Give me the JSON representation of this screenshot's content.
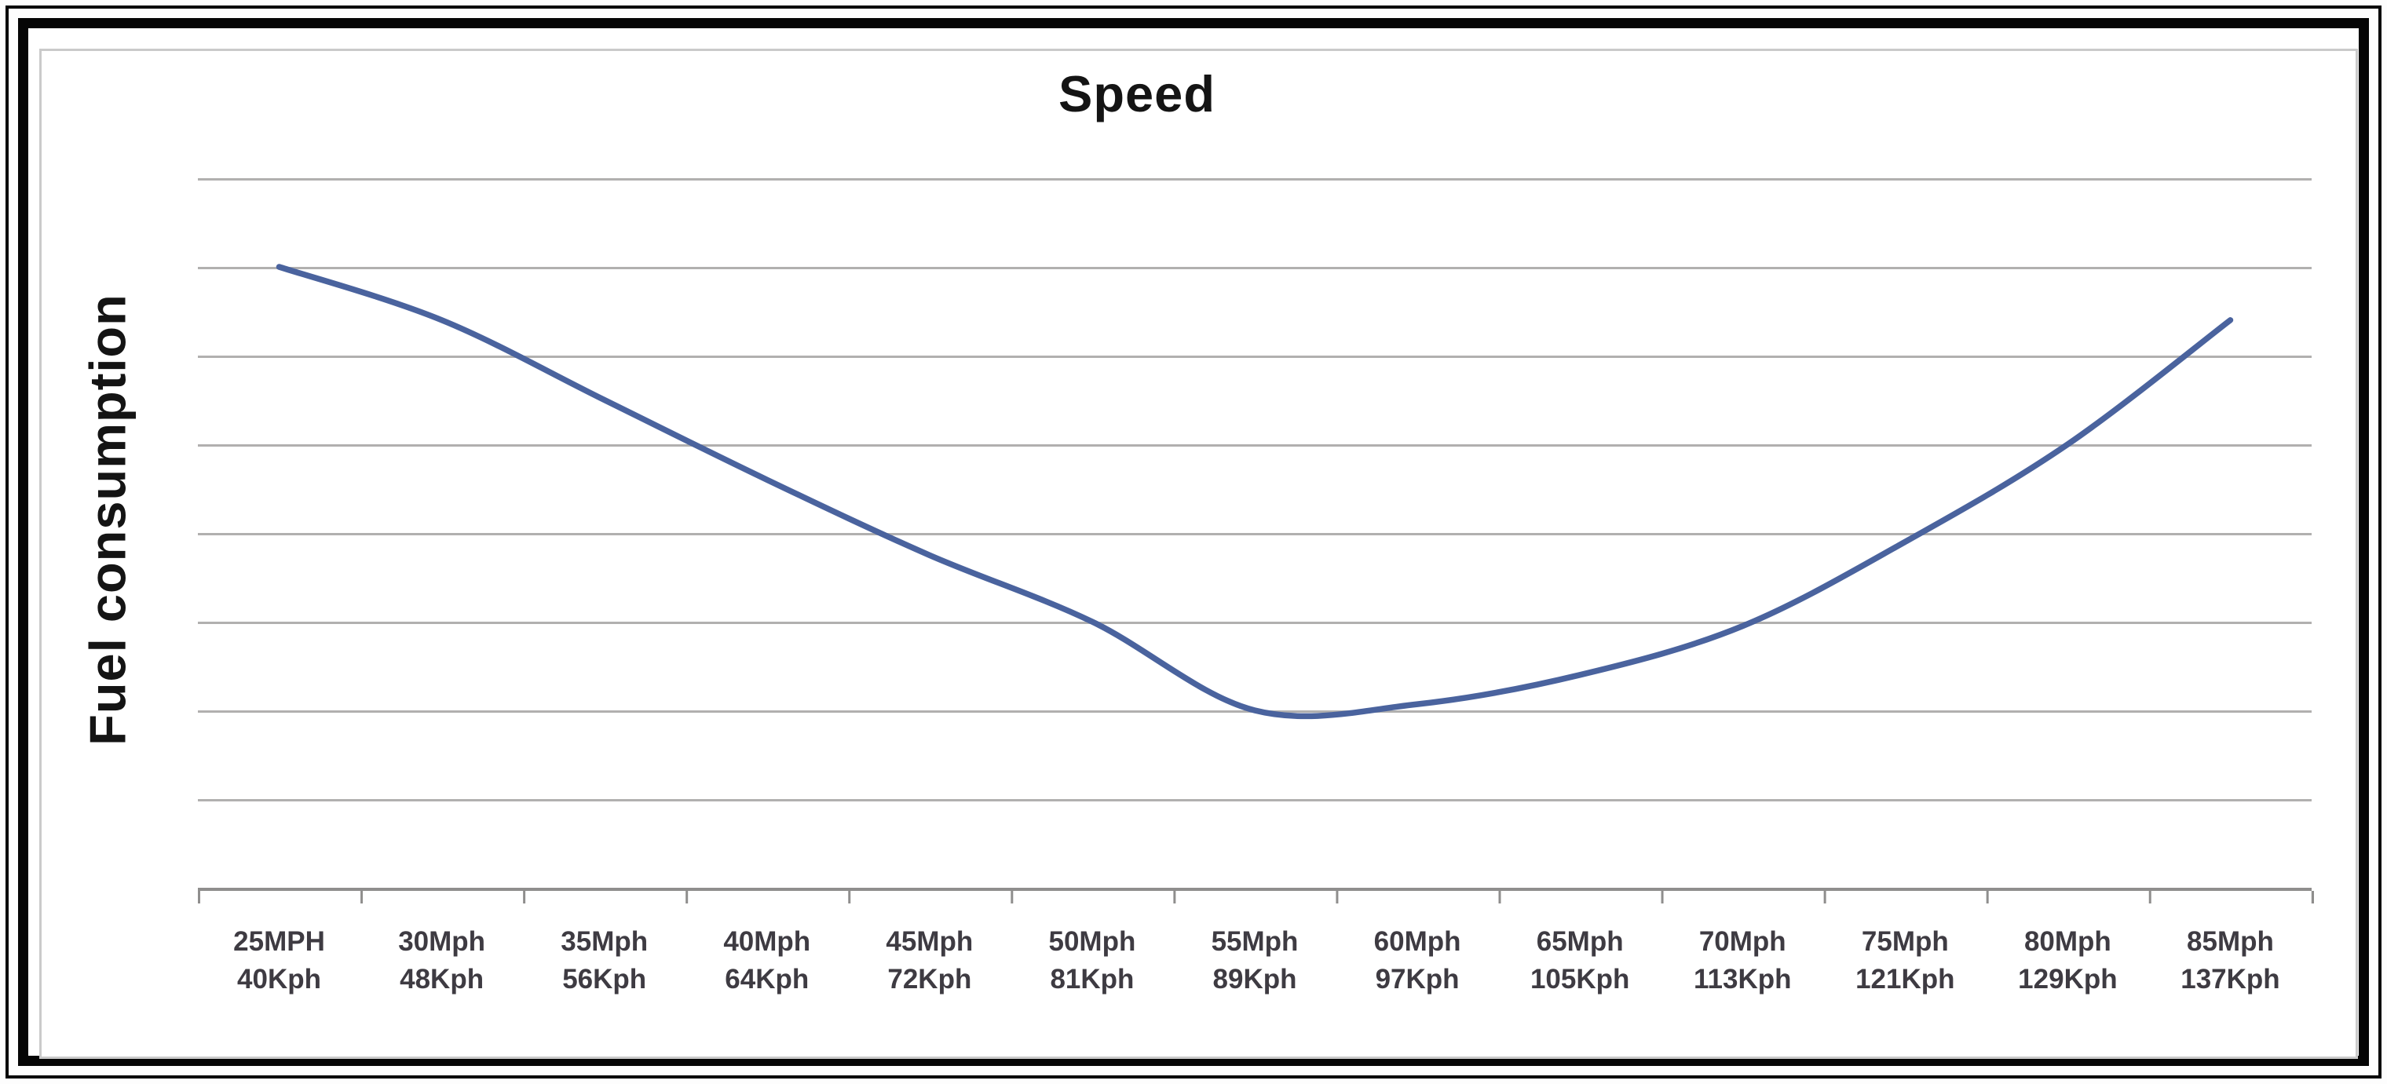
{
  "chart": {
    "title": "Speed",
    "y_axis_label": "Fuel consumption",
    "x_labels": [
      {
        "mph": "25MPH",
        "kph": "40Kph"
      },
      {
        "mph": "30Mph",
        "kph": "48Kph"
      },
      {
        "mph": "35Mph",
        "kph": "56Kph"
      },
      {
        "mph": "40Mph",
        "kph": "64Kph"
      },
      {
        "mph": "45Mph",
        "kph": "72Kph"
      },
      {
        "mph": "50Mph",
        "kph": "81Kph"
      },
      {
        "mph": "55Mph",
        "kph": "89Kph"
      },
      {
        "mph": "60Mph",
        "kph": "97Kph"
      },
      {
        "mph": "65Mph",
        "kph": "105Kph"
      },
      {
        "mph": "70Mph",
        "kph": "113Kph"
      },
      {
        "mph": "75Mph",
        "kph": "121Kph"
      },
      {
        "mph": "80Mph",
        "kph": "129Kph"
      },
      {
        "mph": "85Mph",
        "kph": "137Kph"
      }
    ],
    "colors": {
      "line": "#4a639e",
      "gridline": "#b1b0af",
      "axis": "#8f8e8d",
      "title_text": "#141414",
      "label_text": "#3e3b42",
      "chart_border": "#cacaca",
      "frame": "#050505"
    }
  },
  "chart_data": {
    "type": "line",
    "title": "Speed",
    "ylabel": "Fuel consumption",
    "categories": [
      "25MPH / 40Kph",
      "30Mph / 48Kph",
      "35Mph / 56Kph",
      "40Mph / 64Kph",
      "45Mph / 72Kph",
      "50Mph / 81Kph",
      "55Mph / 89Kph",
      "60Mph / 97Kph",
      "65Mph / 105Kph",
      "70Mph / 113Kph",
      "75Mph / 121Kph",
      "80Mph / 129Kph",
      "85Mph / 137Kph"
    ],
    "values": [
      7.0,
      6.4,
      5.5,
      4.6,
      3.75,
      3.0,
      2.0,
      2.07,
      2.4,
      2.95,
      3.9,
      5.0,
      6.4
    ],
    "ylim": [
      0,
      8
    ],
    "y_gridline_step": 1,
    "y_tick_labels_visible": false,
    "grid": "horizontal",
    "legend": "none",
    "line_style": "smooth"
  }
}
